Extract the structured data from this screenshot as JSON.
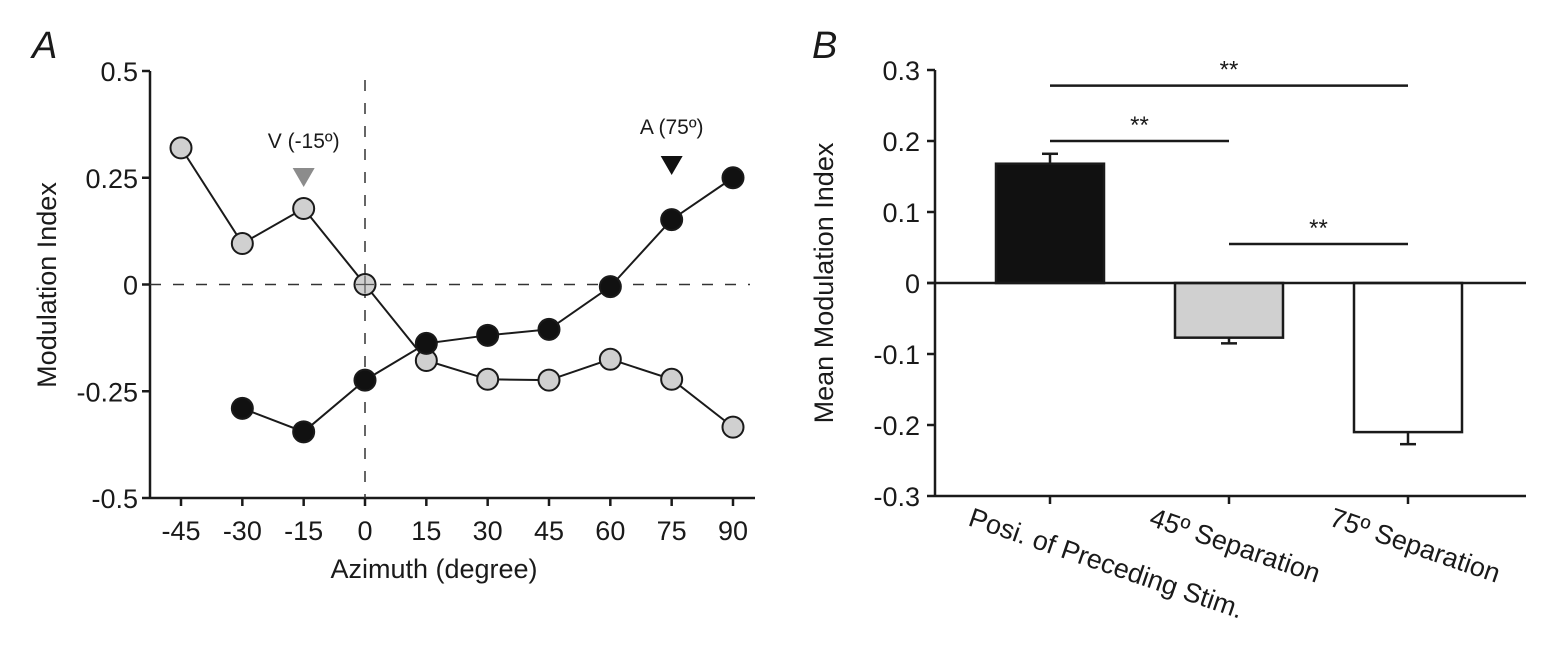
{
  "chart_data": [
    {
      "panel": "A",
      "type": "line",
      "title": "",
      "xlabel": "Azimuth (degree)",
      "ylabel": "Modulation Index",
      "xlim": [
        -45,
        90
      ],
      "ylim": [
        -0.5,
        0.5
      ],
      "x_ticks": [
        -45,
        -30,
        -15,
        0,
        15,
        30,
        45,
        60,
        75,
        90
      ],
      "x_tick_labels": [
        "-45",
        "-30",
        "-15",
        "0",
        "15",
        "30",
        "45",
        "60",
        "75",
        "90"
      ],
      "y_ticks": [
        -0.5,
        -0.25,
        0,
        0.25,
        0.5
      ],
      "y_tick_labels": [
        "-0.5",
        "-0.25",
        "0",
        "0.25",
        "0.5"
      ],
      "reference_lines": {
        "x": 0,
        "y": 0
      },
      "series": [
        {
          "name": "V",
          "color": "#d0d0d0",
          "x": [
            -45,
            -30,
            -15,
            0,
            15,
            30,
            45,
            60,
            75,
            90
          ],
          "values": [
            0.32,
            0.096,
            0.178,
            0.0,
            -0.178,
            -0.222,
            -0.224,
            -0.175,
            -0.222,
            -0.334
          ]
        },
        {
          "name": "A",
          "color": "#111111",
          "x": [
            -30,
            -15,
            0,
            15,
            30,
            45,
            60,
            75,
            90
          ],
          "values": [
            -0.29,
            -0.345,
            -0.224,
            -0.138,
            -0.119,
            -0.105,
            -0.005,
            0.152,
            0.25
          ]
        }
      ],
      "annotations": [
        {
          "text": "V (-15º)",
          "x": -15,
          "marker_color": "#8c8c8c"
        },
        {
          "text": "A (75º)",
          "x": 75,
          "marker_color": "#111111"
        }
      ]
    },
    {
      "panel": "B",
      "type": "bar",
      "title": "",
      "xlabel": "",
      "ylabel": "Mean Modulation Index",
      "ylim": [
        -0.3,
        0.3
      ],
      "y_ticks": [
        -0.3,
        -0.2,
        -0.1,
        0,
        0.1,
        0.2,
        0.3
      ],
      "y_tick_labels": [
        "-0.3",
        "-0.2",
        "-0.1",
        "0",
        "0.1",
        "0.2",
        "0.3"
      ],
      "categories": [
        "Posi. of Preceding Stim.",
        "45º Separation",
        "75º Separation"
      ],
      "values": [
        0.168,
        -0.077,
        -0.21
      ],
      "errors": [
        0.014,
        0.008,
        0.017
      ],
      "colors": [
        "#111111",
        "#d0d0d0",
        "#ffffff"
      ],
      "significance": [
        {
          "from": 0,
          "to": 2,
          "label": "**",
          "y": 0.278
        },
        {
          "from": 0,
          "to": 1,
          "label": "**",
          "y": 0.2
        },
        {
          "from": 1,
          "to": 2,
          "label": "**",
          "y": 0.055
        }
      ]
    }
  ]
}
